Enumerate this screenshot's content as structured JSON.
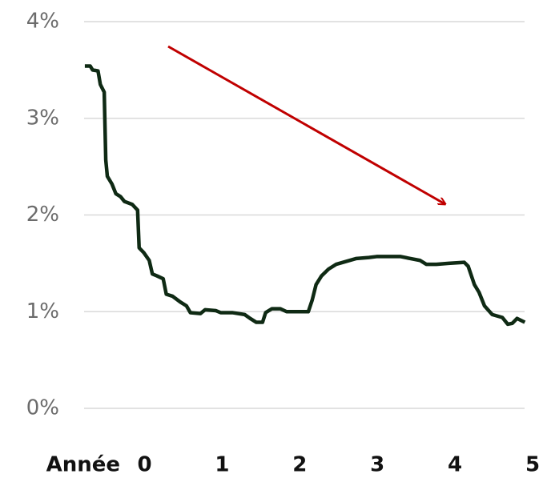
{
  "chart_data": {
    "type": "line",
    "xlabel": "Année",
    "x": [
      -0.77,
      -0.7,
      -0.67,
      -0.6,
      -0.57,
      -0.52,
      -0.5,
      -0.48,
      -0.42,
      -0.37,
      -0.31,
      -0.26,
      -0.16,
      -0.09,
      -0.07,
      -0.01,
      0.06,
      0.1,
      0.16,
      0.24,
      0.28,
      0.36,
      0.46,
      0.54,
      0.59,
      0.72,
      0.78,
      0.92,
      0.98,
      1.13,
      1.29,
      1.36,
      1.44,
      1.52,
      1.56,
      1.64,
      1.75,
      1.83,
      2.11,
      2.16,
      2.21,
      2.28,
      2.37,
      2.47,
      2.6,
      2.73,
      2.89,
      2.99,
      3.3,
      3.42,
      3.55,
      3.63,
      3.76,
      3.92,
      4.12,
      4.17,
      4.25,
      4.31,
      4.38,
      4.48,
      4.61,
      4.68,
      4.74,
      4.8,
      4.9
    ],
    "series": [
      {
        "color": "#0f2a14",
        "values": [
          3.54,
          3.54,
          3.5,
          3.49,
          3.35,
          3.27,
          2.57,
          2.4,
          2.32,
          2.22,
          2.19,
          2.14,
          2.11,
          2.05,
          1.66,
          1.61,
          1.53,
          1.39,
          1.37,
          1.34,
          1.18,
          1.16,
          1.1,
          1.06,
          0.99,
          0.98,
          1.02,
          1.01,
          0.99,
          0.99,
          0.97,
          0.93,
          0.89,
          0.89,
          0.99,
          1.03,
          1.03,
          1.0,
          1.0,
          1.12,
          1.28,
          1.37,
          1.44,
          1.49,
          1.52,
          1.55,
          1.56,
          1.57,
          1.57,
          1.55,
          1.53,
          1.49,
          1.49,
          1.5,
          1.51,
          1.47,
          1.28,
          1.2,
          1.06,
          0.97,
          0.94,
          0.87,
          0.88,
          0.93,
          0.89
        ]
      }
    ],
    "xlim": [
      -0.8,
      5.0
    ],
    "xticks": [
      0,
      1,
      2,
      3,
      4,
      5
    ],
    "ylim": [
      0,
      4
    ],
    "yticks": [
      {
        "value": 0,
        "label": "0%"
      },
      {
        "value": 1,
        "label": "1%"
      },
      {
        "value": 2,
        "label": "2%"
      },
      {
        "value": 3,
        "label": "3%"
      },
      {
        "value": 4,
        "label": "4%"
      }
    ],
    "grid": true
  }
}
